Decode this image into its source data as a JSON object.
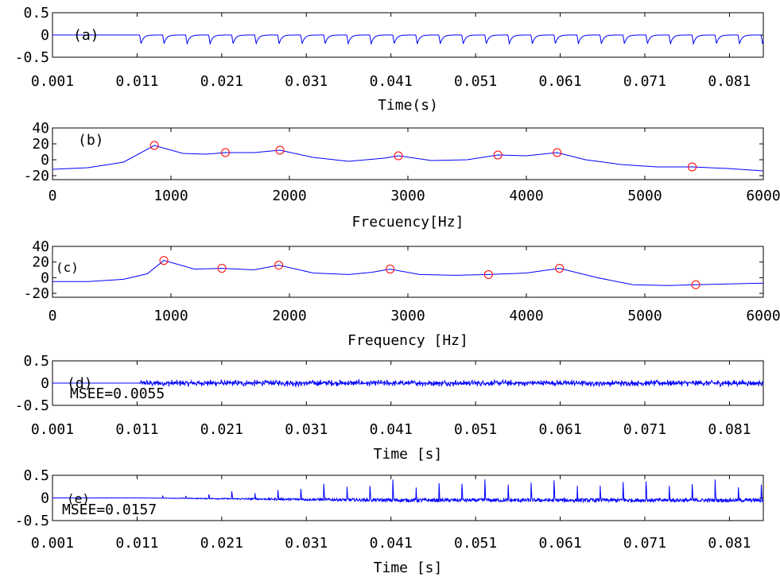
{
  "colors": {
    "signal": "#0000ff",
    "marker": "#ff0000",
    "axis": "#000000"
  },
  "chart_data": [
    {
      "id": "a",
      "type": "line",
      "panel_label": "(a)",
      "annotation": "",
      "xlabel": "Time(s)",
      "ylabel": "",
      "xlim": [
        0.001,
        0.085
      ],
      "ylim": [
        -0.5,
        0.5
      ],
      "xticks": [
        0.001,
        0.011,
        0.021,
        0.031,
        0.041,
        0.051,
        0.061,
        0.071,
        0.081
      ],
      "xtick_labels": [
        "0.001",
        "0.011",
        "0.021",
        "0.031",
        "0.041",
        "0.051",
        "0.061",
        "0.071",
        "0.081"
      ],
      "yticks": [
        -0.5,
        0,
        0.5
      ],
      "ytick_labels": [
        "-0.5",
        "0",
        "0.5"
      ],
      "signal": {
        "kind": "glottal_pulse_train",
        "onset": 0.0113,
        "period": 0.00272,
        "min": -0.2,
        "rest": 0
      }
    },
    {
      "id": "b",
      "type": "line",
      "panel_label": "(b)",
      "annotation": "",
      "xlabel": "Frecuency[Hz]",
      "ylabel": "",
      "xlim": [
        0,
        6000
      ],
      "ylim": [
        -25,
        40
      ],
      "xticks": [
        0,
        1000,
        2000,
        3000,
        4000,
        5000,
        6000
      ],
      "xtick_labels": [
        "0",
        "1000",
        "2000",
        "3000",
        "4000",
        "5000",
        "6000"
      ],
      "yticks": [
        -20,
        0,
        20,
        40
      ],
      "ytick_labels": [
        "-20",
        "0",
        "20",
        "40"
      ],
      "peaks": [
        {
          "x": 860,
          "y": 18
        },
        {
          "x": 1460,
          "y": 9
        },
        {
          "x": 1920,
          "y": 12
        },
        {
          "x": 2920,
          "y": 5
        },
        {
          "x": 3760,
          "y": 6
        },
        {
          "x": 4260,
          "y": 9
        },
        {
          "x": 5400,
          "y": -9
        }
      ],
      "curve": [
        [
          0,
          -12
        ],
        [
          300,
          -10
        ],
        [
          600,
          -3
        ],
        [
          860,
          18
        ],
        [
          1100,
          8
        ],
        [
          1300,
          7
        ],
        [
          1460,
          9
        ],
        [
          1700,
          9
        ],
        [
          1920,
          12
        ],
        [
          2200,
          3
        ],
        [
          2500,
          -2
        ],
        [
          2800,
          2
        ],
        [
          2920,
          5
        ],
        [
          3200,
          -1
        ],
        [
          3500,
          0
        ],
        [
          3760,
          6
        ],
        [
          4000,
          5
        ],
        [
          4260,
          9
        ],
        [
          4500,
          0
        ],
        [
          4800,
          -6
        ],
        [
          5100,
          -9
        ],
        [
          5400,
          -9
        ],
        [
          5700,
          -11
        ],
        [
          6000,
          -14
        ]
      ]
    },
    {
      "id": "c",
      "type": "line",
      "panel_label": "(c)",
      "annotation": "",
      "xlabel": "Frequency [Hz]",
      "ylabel": "",
      "xlim": [
        0,
        6000
      ],
      "ylim": [
        -25,
        40
      ],
      "xticks": [
        0,
        1000,
        2000,
        3000,
        4000,
        5000,
        6000
      ],
      "xtick_labels": [
        "0",
        "1000",
        "2000",
        "3000",
        "4000",
        "5000",
        "6000"
      ],
      "yticks": [
        -20,
        0,
        20,
        40
      ],
      "ytick_labels": [
        "-20",
        "0",
        "20",
        "40"
      ],
      "peaks": [
        {
          "x": 940,
          "y": 22
        },
        {
          "x": 1430,
          "y": 12
        },
        {
          "x": 1910,
          "y": 16
        },
        {
          "x": 2850,
          "y": 11
        },
        {
          "x": 3680,
          "y": 4
        },
        {
          "x": 4280,
          "y": 12
        },
        {
          "x": 5430,
          "y": -9
        }
      ],
      "curve": [
        [
          0,
          -5
        ],
        [
          300,
          -5
        ],
        [
          600,
          -2
        ],
        [
          800,
          5
        ],
        [
          940,
          22
        ],
        [
          1200,
          11
        ],
        [
          1430,
          12
        ],
        [
          1700,
          10
        ],
        [
          1910,
          16
        ],
        [
          2200,
          6
        ],
        [
          2500,
          4
        ],
        [
          2700,
          7
        ],
        [
          2850,
          11
        ],
        [
          3100,
          4
        ],
        [
          3400,
          3
        ],
        [
          3680,
          4
        ],
        [
          4000,
          6
        ],
        [
          4280,
          12
        ],
        [
          4600,
          0
        ],
        [
          4900,
          -9
        ],
        [
          5200,
          -10
        ],
        [
          5430,
          -9
        ],
        [
          5700,
          -8
        ],
        [
          6000,
          -7
        ]
      ]
    },
    {
      "id": "d",
      "type": "line",
      "panel_label": "(d)",
      "annotation": "MSEE=0.0055",
      "xlabel": "Time [s]",
      "ylabel": "",
      "xlim": [
        0.001,
        0.085
      ],
      "ylim": [
        -0.5,
        0.5
      ],
      "xticks": [
        0.001,
        0.011,
        0.021,
        0.031,
        0.041,
        0.051,
        0.061,
        0.071,
        0.081
      ],
      "xtick_labels": [
        "0.001",
        "0.011",
        "0.021",
        "0.031",
        "0.041",
        "0.051",
        "0.061",
        "0.071",
        "0.081"
      ],
      "yticks": [
        -0.5,
        0,
        0.5
      ],
      "ytick_labels": [
        "-0.5",
        "0",
        "0.5"
      ],
      "signal": {
        "kind": "noise_error",
        "onset": 0.0113,
        "amplitude": 0.08
      }
    },
    {
      "id": "e",
      "type": "line",
      "panel_label": "(e)",
      "annotation": "MSEE=0.0157",
      "xlabel": "Time [s]",
      "ylabel": "",
      "xlim": [
        0.001,
        0.085
      ],
      "ylim": [
        -0.5,
        0.5
      ],
      "xticks": [
        0.001,
        0.011,
        0.021,
        0.031,
        0.041,
        0.051,
        0.061,
        0.071,
        0.081
      ],
      "xtick_labels": [
        "0.001",
        "0.011",
        "0.021",
        "0.031",
        "0.041",
        "0.051",
        "0.061",
        "0.071",
        "0.081"
      ],
      "yticks": [
        -0.5,
        0,
        0.5
      ],
      "ytick_labels": [
        "-0.5",
        "0",
        "0.5"
      ],
      "signal": {
        "kind": "spiky_error",
        "onset": 0.0113,
        "period": 0.00272,
        "peak_max": 0.45,
        "baseline": -0.05
      }
    }
  ]
}
